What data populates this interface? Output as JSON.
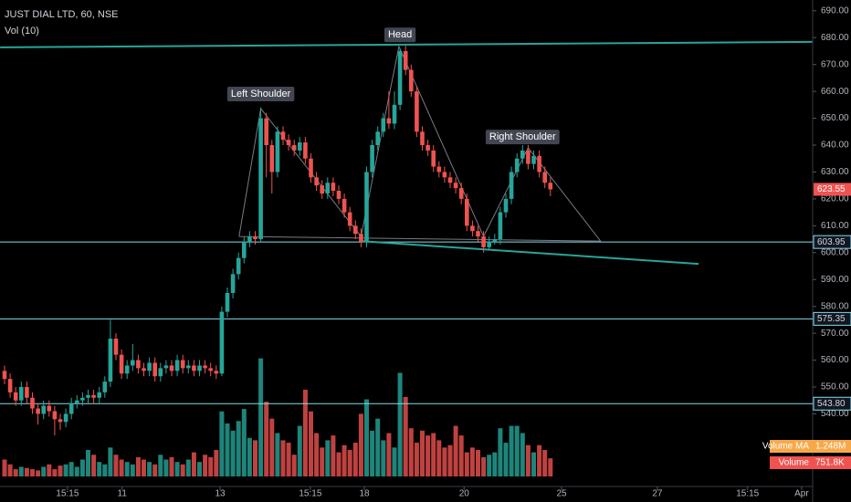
{
  "chart_data": {
    "type": "candlestick",
    "title": "JUST DIAL LTD, 60, NSE",
    "subtitle": "Vol (10)",
    "open": [
      556,
      553,
      548,
      545,
      550,
      546,
      542,
      540,
      543,
      541,
      538,
      537,
      540,
      544,
      545,
      546,
      547,
      546,
      548,
      552,
      568,
      562,
      555,
      558,
      560,
      557,
      556,
      559,
      554,
      557,
      558,
      556,
      560,
      557,
      558,
      556,
      558,
      557,
      556,
      555,
      578,
      585,
      592,
      598,
      604,
      606,
      605,
      650,
      640,
      630,
      645,
      642,
      640,
      638,
      641,
      635,
      628,
      625,
      622,
      626,
      623,
      620,
      615,
      610,
      607,
      604,
      630,
      640,
      645,
      650,
      648,
      655,
      675,
      668,
      660,
      645,
      640,
      638,
      632,
      630,
      628,
      626,
      624,
      620,
      610,
      608,
      606,
      602,
      604,
      605,
      615,
      620,
      630,
      635,
      638,
      633,
      636,
      630,
      626
    ],
    "high": [
      558,
      555,
      550,
      552,
      552,
      548,
      544,
      545,
      545,
      543,
      540,
      542,
      546,
      547,
      548,
      549,
      549,
      550,
      554,
      575,
      570,
      564,
      560,
      566,
      562,
      559,
      561,
      561,
      559,
      560,
      560,
      562,
      562,
      560,
      560,
      560,
      560,
      559,
      558,
      580,
      587,
      594,
      600,
      606,
      608,
      608,
      654,
      652,
      642,
      647,
      647,
      644,
      642,
      643,
      643,
      637,
      630,
      627,
      628,
      628,
      625,
      622,
      617,
      612,
      609,
      632,
      642,
      647,
      652,
      660,
      660,
      676,
      677,
      670,
      662,
      647,
      642,
      640,
      634,
      632,
      630,
      628,
      626,
      622,
      612,
      610,
      608,
      606,
      607,
      617,
      622,
      632,
      637,
      640,
      640,
      638,
      638,
      632,
      628
    ],
    "low": [
      551,
      546,
      543,
      543,
      544,
      540,
      536,
      538,
      539,
      532,
      534,
      535,
      538,
      542,
      543,
      544,
      544,
      544,
      546,
      550,
      560,
      553,
      553,
      556,
      555,
      554,
      554,
      552,
      552,
      555,
      554,
      554,
      555,
      555,
      554,
      554,
      555,
      554,
      553,
      554,
      576,
      583,
      590,
      596,
      602,
      603,
      604,
      628,
      622,
      628,
      640,
      638,
      636,
      636,
      633,
      626,
      623,
      620,
      620,
      621,
      618,
      613,
      608,
      605,
      602,
      602,
      628,
      638,
      643,
      646,
      646,
      653,
      666,
      658,
      643,
      638,
      636,
      630,
      628,
      626,
      624,
      622,
      618,
      608,
      606,
      604,
      600,
      601,
      603,
      603,
      613,
      618,
      628,
      633,
      631,
      631,
      628,
      624,
      621
    ],
    "close": [
      553,
      548,
      545,
      550,
      546,
      542,
      540,
      543,
      541,
      538,
      537,
      540,
      544,
      545,
      546,
      547,
      546,
      548,
      552,
      568,
      562,
      555,
      558,
      560,
      557,
      556,
      559,
      554,
      557,
      558,
      556,
      560,
      557,
      558,
      556,
      558,
      557,
      556,
      555,
      578,
      585,
      592,
      598,
      604,
      606,
      605,
      650,
      640,
      630,
      645,
      642,
      640,
      638,
      641,
      635,
      628,
      625,
      622,
      626,
      623,
      620,
      615,
      610,
      607,
      604,
      630,
      640,
      645,
      650,
      648,
      655,
      675,
      668,
      660,
      645,
      640,
      638,
      632,
      630,
      628,
      626,
      624,
      620,
      610,
      608,
      606,
      602,
      604,
      605,
      615,
      620,
      630,
      635,
      638,
      633,
      636,
      630,
      626,
      623.55
    ],
    "volume": [
      700000,
      500000,
      300000,
      400000,
      350000,
      300000,
      250000,
      400000,
      500000,
      300000,
      450000,
      500000,
      600000,
      400000,
      700000,
      1100000,
      900000,
      600000,
      500000,
      1200000,
      900000,
      700000,
      600000,
      500000,
      800000,
      700000,
      600000,
      500000,
      900000,
      700000,
      800000,
      600000,
      500000,
      700000,
      1000000,
      600000,
      900000,
      800000,
      1100000,
      2700000,
      2200000,
      1900000,
      2300000,
      2800000,
      1600000,
      1500000,
      4900000,
      3100000,
      2400000,
      1800000,
      1500000,
      1400000,
      900000,
      2100000,
      3600000,
      2700000,
      1800000,
      1200000,
      1500000,
      1700000,
      1000000,
      1300000,
      1100000,
      1400000,
      2600000,
      3200000,
      1900000,
      2400000,
      1500000,
      1800000,
      1200000,
      4300000,
      3300000,
      2000000,
      1400000,
      1900000,
      1700000,
      1800000,
      1500000,
      1200000,
      1300000,
      2100000,
      1700000,
      1000000,
      1200000,
      1100000,
      800000,
      900000,
      1000000,
      2000000,
      1400000,
      2100000,
      2100000,
      1800000,
      1300000,
      1000000,
      1300000,
      1100000,
      751800
    ],
    "up_color": "#26a69a",
    "down_color": "#ef5350",
    "ylim": [
      514,
      694
    ],
    "yticks": [
      {
        "value": 540,
        "label": "540.00"
      },
      {
        "value": 550,
        "label": "550.00"
      },
      {
        "value": 560,
        "label": "560.00"
      },
      {
        "value": 570,
        "label": "570.00"
      },
      {
        "value": 580,
        "label": "580.00"
      },
      {
        "value": 590,
        "label": "590.00"
      },
      {
        "value": 600,
        "label": "600.00"
      },
      {
        "value": 610,
        "label": "610.00"
      },
      {
        "value": 620,
        "label": "620.00"
      },
      {
        "value": 630,
        "label": "630.00"
      },
      {
        "value": 640,
        "label": "640.00"
      },
      {
        "value": 650,
        "label": "650.00"
      },
      {
        "value": 660,
        "label": "660.00"
      },
      {
        "value": 670,
        "label": "670.00"
      },
      {
        "value": 680,
        "label": "680.00"
      },
      {
        "value": 690,
        "label": "690.00"
      }
    ],
    "xticks": [
      {
        "value": 11.3,
        "label": "15:15"
      },
      {
        "value": 21.1,
        "label": "11"
      },
      {
        "value": 38.7,
        "label": "13"
      },
      {
        "value": 54.9,
        "label": "15:15"
      },
      {
        "value": 64.6,
        "label": "18"
      },
      {
        "value": 82.5,
        "label": "20"
      },
      {
        "value": 100,
        "label": "25"
      },
      {
        "value": 117.2,
        "label": "27"
      },
      {
        "value": 133.4,
        "label": "15:15"
      },
      {
        "value": 143.1,
        "label": "Apr"
      }
    ],
    "volume_lim": [
      0,
      5000000
    ],
    "horizontal_lines": [
      {
        "value": 603.95,
        "label": "603.95"
      },
      {
        "value": 575.35,
        "label": "575.35"
      },
      {
        "value": 543.8,
        "label": "543.80"
      }
    ],
    "last_price": {
      "value": 623.55,
      "label": "623.55"
    },
    "volume_ma": {
      "name": "Volume MA",
      "value": 1248000,
      "label": "1.248M"
    },
    "volume_last": {
      "name": "Volume",
      "value": 751800,
      "label": "751.8K"
    },
    "trendlines": [
      {
        "color": "#26a69a",
        "points": [
          [
            -0.8,
            676.4
          ],
          [
            145,
            678.4
          ]
        ]
      },
      {
        "color": "#26a69a",
        "points": [
          [
            63.9,
            604.3
          ],
          [
            124.6,
            595.8
          ]
        ]
      },
      {
        "color": "#787b86",
        "points": [
          [
            42.1,
            606
          ],
          [
            46,
            653.6
          ],
          [
            64,
            606
          ],
          [
            70.8,
            676.7
          ],
          [
            86,
            606
          ],
          [
            94,
            639
          ],
          [
            107,
            604.3
          ],
          [
            42.1,
            606
          ]
        ]
      }
    ],
    "annotations": [
      {
        "text": "Left Shoulder",
        "x": 46,
        "y": 659
      },
      {
        "text": "Head",
        "x": 71,
        "y": 681
      },
      {
        "text": "Right Shoulder",
        "x": 93,
        "y": 643
      }
    ]
  }
}
